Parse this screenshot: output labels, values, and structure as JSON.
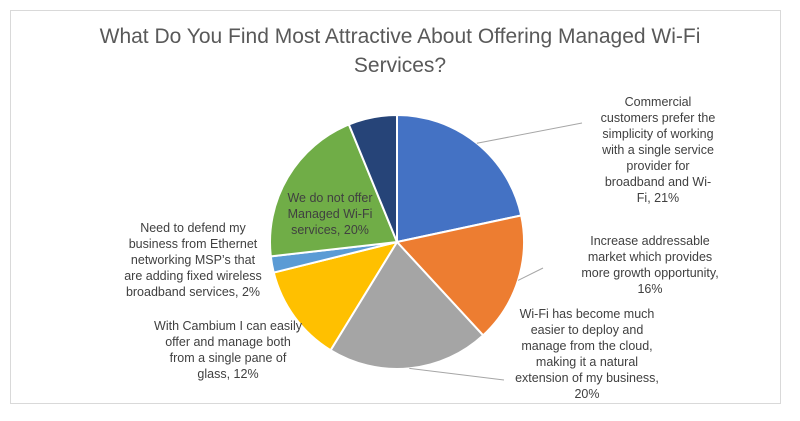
{
  "chart_data": {
    "type": "pie",
    "title_line1": "What Do You Find Most Attractive About Offering Managed Wi-Fi",
    "title_line2": "Services?",
    "slices": [
      {
        "label": "Commercial customers prefer the simplicity of working with a single service provider for broadband and Wi-Fi, 21%",
        "value": 21,
        "color": "#4472C4"
      },
      {
        "label": "Increase addressable market which provides more growth opportunity, 16%",
        "value": 16,
        "color": "#ED7D31"
      },
      {
        "label": "Wi-Fi has become much easier to deploy and manage from the cloud, making it a natural extension of my business, 20%",
        "value": 20,
        "color": "#A5A5A5"
      },
      {
        "label": "With Cambium I can easily offer and manage both from a single pane of glass, 12%",
        "value": 12,
        "color": "#FFC000"
      },
      {
        "label": "Need to defend my business from Ethernet networking MSP’s that are adding fixed wireless broadband services, 2%",
        "value": 2,
        "color": "#5B9BD5"
      },
      {
        "label": "We do not offer Managed Wi-Fi services, 20%",
        "value": 20,
        "color": "#70AD47"
      },
      {
        "label": "",
        "value": 6,
        "color": "#264478"
      }
    ],
    "labels": {
      "commercial": [
        "Commercial",
        "customers prefer the",
        "simplicity of working",
        "with a single service",
        "provider for",
        "broadband and Wi-",
        "Fi, 21%"
      ],
      "increase": [
        "Increase addressable",
        "market which provides",
        "more growth opportunity,",
        "16%"
      ],
      "wifi": [
        "Wi-Fi has become much",
        "easier to deploy and",
        "manage from the cloud,",
        "making it a natural",
        "extension of my business,",
        "20%"
      ],
      "cambium": [
        "With Cambium I can easily",
        "offer and manage both",
        "from a single pane of",
        "glass, 12%"
      ],
      "defend": [
        "Need to defend my",
        "business from Ethernet",
        "networking MSP’s that",
        "are adding fixed wireless",
        "broadband services, 2%"
      ],
      "nooffer": [
        "We do not offer",
        "Managed Wi-Fi",
        "services, 20%"
      ]
    }
  }
}
